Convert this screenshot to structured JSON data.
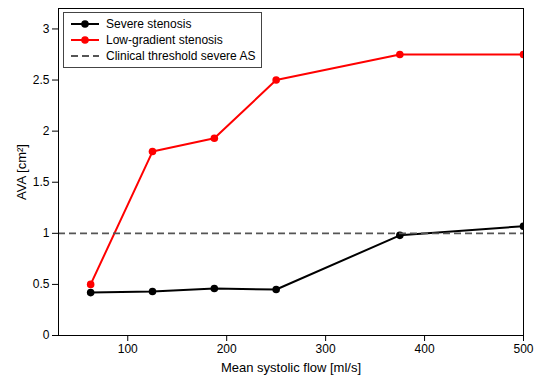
{
  "chart_data": {
    "type": "line",
    "xlabel": "Mean systolic flow [ml/s]",
    "ylabel": "AVA [cm²]",
    "x": [
      62.5,
      125,
      187.5,
      250,
      375,
      500
    ],
    "series": [
      {
        "name": "Severe stenosis",
        "color": "#000000",
        "marker": "circle",
        "line_style": "solid",
        "values": [
          0.42,
          0.43,
          0.46,
          0.45,
          0.98,
          1.07
        ]
      },
      {
        "name": "Low-gradient stenosis",
        "color": "#ff0000",
        "marker": "circle",
        "line_style": "solid",
        "values": [
          0.5,
          1.8,
          1.93,
          2.5,
          2.75,
          2.75
        ]
      },
      {
        "name": "Clinical threshold severe AS",
        "type": "hline",
        "y": 1,
        "color": "#555555",
        "line_style": "dashed"
      }
    ],
    "xlim": [
      30,
      500
    ],
    "ylim": [
      0,
      3.2
    ],
    "xticks": [
      100,
      200,
      300,
      400,
      500
    ],
    "yticks": [
      0,
      0.5,
      1,
      1.5,
      2,
      2.5,
      3
    ],
    "grid": false,
    "legend": "upper left"
  }
}
